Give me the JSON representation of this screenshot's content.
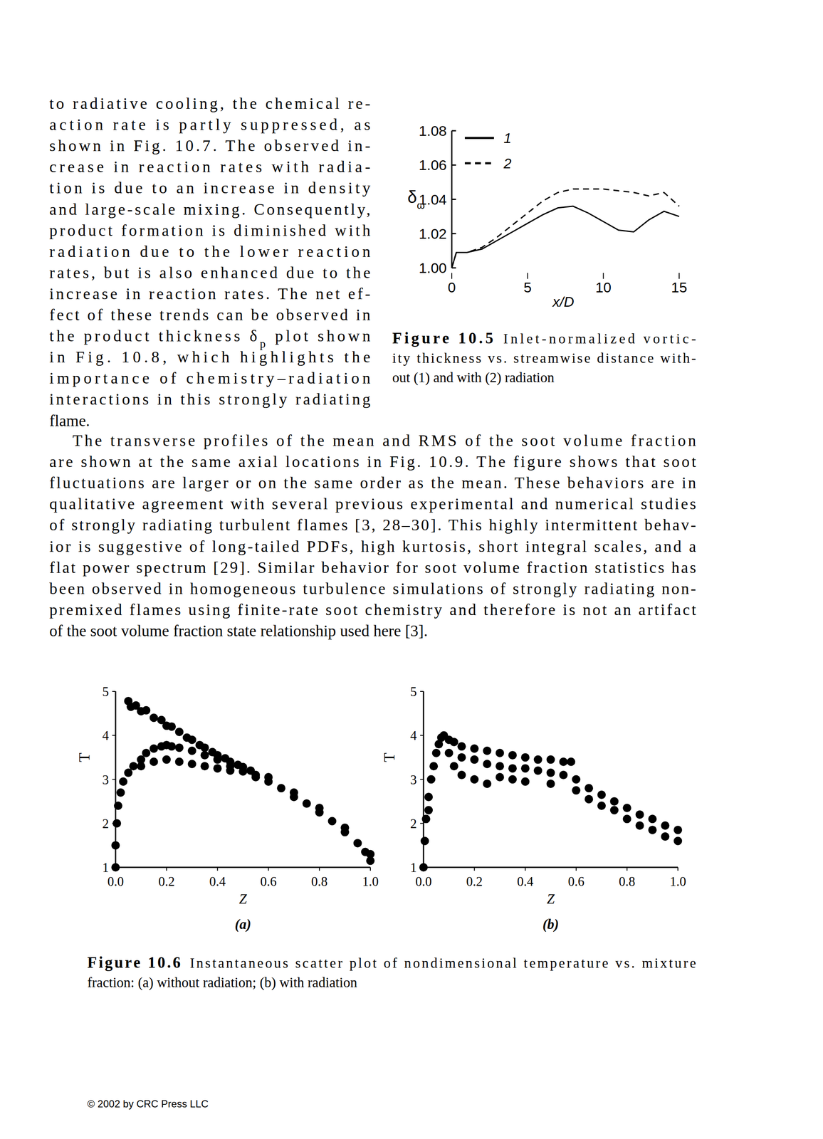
{
  "text": {
    "paragraph_1": [
      "to radiative cooling, the chemical re-",
      "action rate is partly suppressed, as",
      "shown in Fig. 10.7. The observed in-",
      "crease in reaction rates with radia-",
      "tion is due to an increase in density",
      "and large-scale mixing. Consequently,",
      "product formation is diminished with",
      "radiation due to the lower reaction",
      "rates, but is also enhanced due to the",
      "increase in reaction rates. The net ef-",
      "fect of these trends can be observed in",
      {
        "before": "the product thickness δ",
        "sub": "p",
        "after": " plot shown"
      },
      "in Fig. 10.8, which highlights the",
      "importance of chemistry–radiation",
      "interactions in this strongly radiating",
      "flame."
    ],
    "paragraph_2": [
      "The transverse profiles of the mean and RMS of the soot volume fraction",
      "are shown at the same axial locations in Fig. 10.9. The figure shows that soot",
      "fluctuations are larger or on the same order as the mean. These behaviors are in",
      "qualitative agreement with several previous experimental and numerical studies",
      "of strongly radiating turbulent flames [3, 28–30]. This highly intermittent behav-",
      "ior is suggestive of long-tailed PDFs, high kurtosis, short integral scales, and a",
      "flat power spectrum [29]. Similar behavior for soot volume fraction statistics has",
      "been observed in homogeneous turbulence simulations of strongly radiating non-",
      "premixed flames using finite-rate soot chemistry and therefore is not an artifact",
      "of the soot volume fraction state relationship used here [3]."
    ],
    "footer": "© 2002 by CRC Press LLC"
  },
  "figures": [
    {
      "label": "Figure 10.5",
      "caption": [
        "Inlet-normalized vortic-",
        "ity thickness vs. streamwise distance with-",
        "out (1) and with (2) radiation"
      ]
    },
    {
      "label": "Figure 10.6",
      "caption": [
        "Instantaneous scatter plot of nondimensional temperature vs. mixture",
        "fraction: (a) without radiation; (b) with radiation"
      ]
    }
  ],
  "chart_data": [
    {
      "type": "line",
      "x_label": "x/D",
      "y_label": "δω",
      "x": [
        0,
        0.3,
        1,
        2,
        3,
        4,
        5,
        6,
        7,
        8,
        9,
        10,
        11,
        12,
        13,
        14,
        15
      ],
      "xlim": [
        0,
        15
      ],
      "xticks": [
        0,
        5,
        10,
        15
      ],
      "ylim": [
        1,
        1.08
      ],
      "yticks": [
        {
          "value": 1,
          "label": "1.00"
        },
        1.02,
        1.04,
        1.06,
        1.08
      ],
      "legend": "upper left",
      "series": [
        {
          "name": "1",
          "color": "#000000",
          "line_style": "solid",
          "values": [
            1,
            1.009,
            1.009,
            1.011,
            1.016,
            1.021,
            1.026,
            1.031,
            1.035,
            1.036,
            1.032,
            1.027,
            1.022,
            1.021,
            1.028,
            1.033,
            1.03
          ]
        },
        {
          "name": "2",
          "color": "#000000",
          "line_style": "dashed",
          "values": [
            1,
            1.009,
            1.009,
            1.012,
            1.018,
            1.025,
            1.032,
            1.039,
            1.044,
            1.046,
            1.046,
            1.046,
            1.045,
            1.044,
            1.042,
            1.044,
            1.036
          ]
        }
      ]
    },
    {
      "type": "scatter",
      "title": "(a)",
      "x_label": "Z",
      "y_label": "T",
      "xlim": [
        0,
        1
      ],
      "xticks": [
        {
          "value": 0,
          "label": "0.0"
        },
        0.2,
        0.4,
        0.6,
        0.8,
        {
          "value": 1,
          "label": "1.0"
        }
      ],
      "ylim": [
        1,
        5
      ],
      "yticks": [
        1,
        2,
        3,
        4,
        5
      ],
      "series": [
        {
          "color": "#000000",
          "marker": "circle",
          "x": [
            0,
            0,
            0.005,
            0.01,
            0.02,
            0.03,
            0.05,
            0.07,
            0.1,
            0.12,
            0.15,
            0.18,
            0.2,
            0.22,
            0.25,
            0.1,
            0.15,
            0.2,
            0.25,
            0.3,
            0.3,
            0.35,
            0.35,
            0.4,
            0.4,
            0.45,
            0.45,
            0.5,
            0.55,
            0.05,
            0.06,
            0.08,
            0.1,
            0.12,
            0.15,
            0.18,
            0.2,
            0.22,
            0.25,
            0.28,
            0.3,
            0.33,
            0.35,
            0.38,
            0.4,
            0.43,
            0.45,
            0.48,
            0.5,
            0.53,
            0.55,
            0.6,
            0.6,
            0.65,
            0.7,
            0.7,
            0.75,
            0.8,
            0.8,
            0.85,
            0.9,
            0.9,
            0.95,
            0.98,
            1,
            1
          ],
          "values": [
            1,
            1.5,
            2,
            2.4,
            2.7,
            2.95,
            3.15,
            3.3,
            3.45,
            3.6,
            3.7,
            3.75,
            3.78,
            3.75,
            3.72,
            3.3,
            3.4,
            3.45,
            3.4,
            3.35,
            3.65,
            3.55,
            3.3,
            3.45,
            3.25,
            3.3,
            3.2,
            3.18,
            3.05,
            4.78,
            4.65,
            4.68,
            4.55,
            4.57,
            4.4,
            4.35,
            4.22,
            4.2,
            4.08,
            3.95,
            3.9,
            3.78,
            3.72,
            3.62,
            3.55,
            3.48,
            3.4,
            3.33,
            3.28,
            3.2,
            3.1,
            2.95,
            3.05,
            2.8,
            2.6,
            2.7,
            2.45,
            2.25,
            2.35,
            2.05,
            1.8,
            1.9,
            1.55,
            1.35,
            1.15,
            1.3
          ]
        }
      ]
    },
    {
      "type": "scatter",
      "title": "(b)",
      "x_label": "Z",
      "y_label": "T",
      "xlim": [
        0,
        1
      ],
      "xticks": [
        {
          "value": 0,
          "label": "0.0"
        },
        0.2,
        0.4,
        0.6,
        0.8,
        {
          "value": 1,
          "label": "1.0"
        }
      ],
      "ylim": [
        1,
        5
      ],
      "yticks": [
        1,
        2,
        3,
        4,
        5
      ],
      "series": [
        {
          "color": "#000000",
          "marker": "circle",
          "x": [
            0,
            0.005,
            0.01,
            0.02,
            0.02,
            0.03,
            0.04,
            0.05,
            0.06,
            0.07,
            0.08,
            0.1,
            0.1,
            0.12,
            0.12,
            0.15,
            0.15,
            0.15,
            0.2,
            0.2,
            0.2,
            0.25,
            0.25,
            0.25,
            0.3,
            0.3,
            0.3,
            0.35,
            0.35,
            0.35,
            0.4,
            0.4,
            0.4,
            0.45,
            0.45,
            0.5,
            0.5,
            0.5,
            0.55,
            0.55,
            0.58,
            0.6,
            0.6,
            0.65,
            0.65,
            0.7,
            0.7,
            0.75,
            0.75,
            0.8,
            0.8,
            0.85,
            0.85,
            0.9,
            0.9,
            0.95,
            0.95,
            1,
            1
          ],
          "values": [
            1,
            1.6,
            2.1,
            2.6,
            2.3,
            3,
            3.3,
            3.6,
            3.8,
            3.95,
            4,
            3.9,
            3.6,
            3.85,
            3.3,
            3.75,
            3.5,
            3.1,
            3.7,
            3.45,
            3,
            3.65,
            3.35,
            2.9,
            3.6,
            3.3,
            3.05,
            3.55,
            3.25,
            3,
            3.5,
            3.25,
            2.95,
            3.45,
            3.2,
            3.45,
            3.15,
            2.9,
            3.4,
            3.1,
            3.4,
            3,
            2.75,
            2.8,
            2.55,
            2.65,
            2.4,
            2.5,
            2.3,
            2.35,
            2.1,
            2.2,
            1.95,
            2.1,
            1.85,
            1.95,
            1.7,
            1.85,
            1.6
          ]
        }
      ]
    }
  ]
}
